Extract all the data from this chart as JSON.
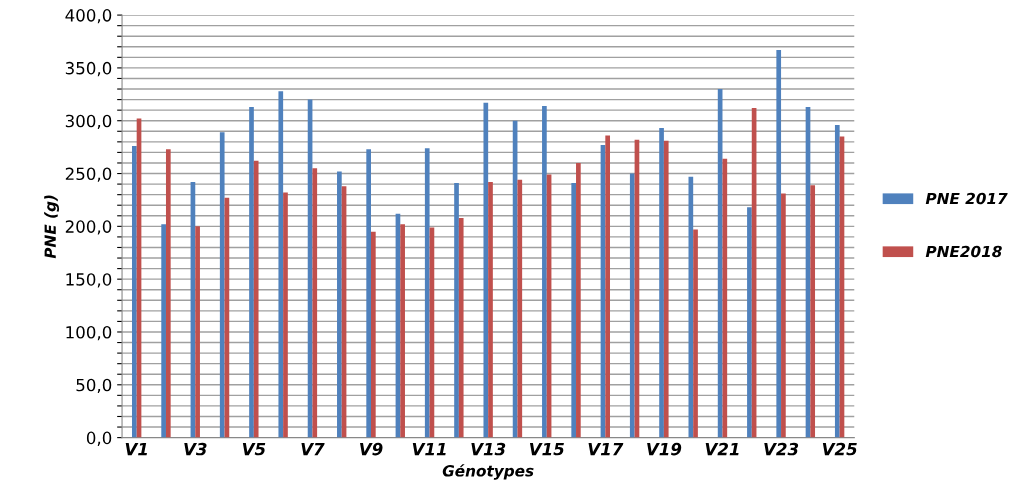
{
  "chart_data": {
    "type": "bar",
    "xlabel": "Génotypes",
    "ylabel": "PNE (g)",
    "categories": [
      "V1",
      null,
      "V3",
      null,
      "V5",
      null,
      "V7",
      null,
      "V9",
      null,
      "V11",
      null,
      "V13",
      null,
      "V15",
      null,
      "V17",
      null,
      "V19",
      null,
      "V21",
      null,
      "V23",
      null,
      "V25"
    ],
    "series": [
      {
        "name": "PNE 2017",
        "color": "#4f81bd",
        "values": [
          276,
          202,
          242,
          289,
          313,
          328,
          320,
          252,
          273,
          212,
          274,
          241,
          317,
          300,
          314,
          241,
          277,
          250,
          293,
          247,
          330,
          218,
          367,
          313,
          296
        ]
      },
      {
        "name": "PNE2018",
        "color": "#c0504d",
        "values": [
          302,
          273,
          200,
          227,
          262,
          232,
          255,
          238,
          195,
          202,
          199,
          208,
          242,
          244,
          249,
          260,
          286,
          282,
          281,
          197,
          264,
          312,
          231,
          239,
          285
        ]
      }
    ],
    "ylim": [
      0,
      400
    ],
    "yticks": [
      {
        "value": 0,
        "label": "0,0"
      },
      {
        "value": 10,
        "label": null
      },
      {
        "value": 20,
        "label": null
      },
      {
        "value": 30,
        "label": null
      },
      {
        "value": 40,
        "label": null
      },
      {
        "value": 50,
        "label": "50,0"
      },
      {
        "value": 60,
        "label": null
      },
      {
        "value": 70,
        "label": null
      },
      {
        "value": 80,
        "label": null
      },
      {
        "value": 90,
        "label": null
      },
      {
        "value": 100,
        "label": "100,0"
      },
      {
        "value": 110,
        "label": null
      },
      {
        "value": 120,
        "label": null
      },
      {
        "value": 130,
        "label": null
      },
      {
        "value": 140,
        "label": null
      },
      {
        "value": 150,
        "label": "150,0"
      },
      {
        "value": 160,
        "label": null
      },
      {
        "value": 170,
        "label": null
      },
      {
        "value": 180,
        "label": null
      },
      {
        "value": 190,
        "label": null
      },
      {
        "value": 200,
        "label": "200,0"
      },
      {
        "value": 210,
        "label": null
      },
      {
        "value": 220,
        "label": null
      },
      {
        "value": 230,
        "label": null
      },
      {
        "value": 240,
        "label": null
      },
      {
        "value": 250,
        "label": "250,0"
      },
      {
        "value": 260,
        "label": null
      },
      {
        "value": 270,
        "label": null
      },
      {
        "value": 280,
        "label": null
      },
      {
        "value": 290,
        "label": null
      },
      {
        "value": 300,
        "label": "300,0"
      },
      {
        "value": 310,
        "label": null
      },
      {
        "value": 320,
        "label": null
      },
      {
        "value": 330,
        "label": null
      },
      {
        "value": 340,
        "label": null
      },
      {
        "value": 350,
        "label": "350,0"
      },
      {
        "value": 360,
        "label": null
      },
      {
        "value": 370,
        "label": null
      },
      {
        "value": 380,
        "label": null
      },
      {
        "value": 390,
        "label": null
      },
      {
        "value": 400,
        "label": "400,0"
      }
    ],
    "grid": "y",
    "legend": "right"
  }
}
